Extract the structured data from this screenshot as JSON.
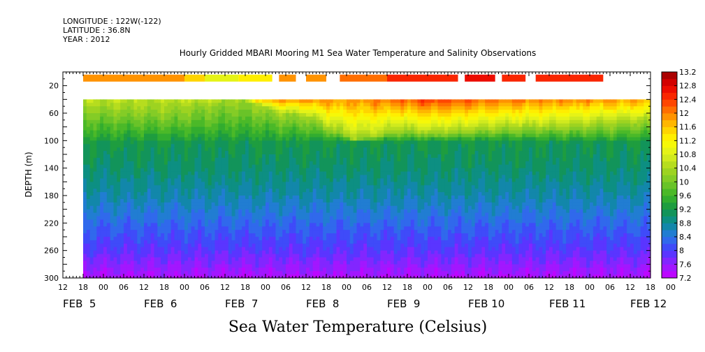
{
  "header": {
    "longitude": "LONGITUDE : 122W(-122)",
    "latitude": "LATITUDE : 36.8N",
    "year": "YEAR : 2012"
  },
  "chart_data": {
    "type": "heatmap",
    "title": "Hourly Gridded MBARI Mooring M1 Sea Water Temperature and Salinity Observations",
    "xlabel": "Sea Water Temperature (Celsius)",
    "ylabel": "DEPTH (m)",
    "x_unit": "hours since 2012-02-05 12:00",
    "xlim": [
      0,
      174
    ],
    "ylim": [
      300,
      0
    ],
    "y_ticks": [
      20,
      60,
      100,
      140,
      180,
      220,
      260,
      300
    ],
    "x_hour_ticks": [
      "12",
      "18",
      "00",
      "06",
      "12",
      "18",
      "00",
      "06",
      "12",
      "18",
      "00",
      "06",
      "12",
      "18",
      "00",
      "06",
      "12",
      "18",
      "00",
      "06",
      "12",
      "18",
      "00",
      "06",
      "12",
      "18",
      "00",
      "06",
      "12",
      "18",
      "00"
    ],
    "x_day_labels": [
      {
        "label": "FEB  5",
        "hour": 0
      },
      {
        "label": "FEB  6",
        "hour": 24
      },
      {
        "label": "FEB  7",
        "hour": 48
      },
      {
        "label": "FEB  8",
        "hour": 72
      },
      {
        "label": "FEB  9",
        "hour": 96
      },
      {
        "label": "FEB 10",
        "hour": 120
      },
      {
        "label": "FEB 11",
        "hour": 144
      },
      {
        "label": "FEB 12",
        "hour": 168
      }
    ],
    "colorbar": {
      "min": 7.2,
      "max": 13.2,
      "step": 0.2,
      "labels": [
        "13.2",
        "12.8",
        "12.4",
        "12",
        "11.6",
        "11.2",
        "10.8",
        "10.4",
        "10",
        "9.6",
        "9.2",
        "8.8",
        "8.4",
        "8",
        "7.6",
        "7.2"
      ]
    },
    "data_start_hour": 6,
    "data_top_depth": 40,
    "surface_depth": 10,
    "surface_segments": [
      {
        "start": 6,
        "end": 36,
        "value": 11.8
      },
      {
        "start": 36,
        "end": 42,
        "value": 11.4
      },
      {
        "start": 42,
        "end": 52,
        "value": 11.0
      },
      {
        "start": 52,
        "end": 62,
        "value": 11.3
      },
      {
        "start": 64,
        "end": 69,
        "value": 12.0
      },
      {
        "start": 72,
        "end": 75,
        "value": 12.0
      },
      {
        "start": 75,
        "end": 78,
        "value": 11.8
      },
      {
        "start": 82,
        "end": 96,
        "value": 12.2
      },
      {
        "start": 96,
        "end": 117,
        "value": 12.5
      },
      {
        "start": 119,
        "end": 128,
        "value": 12.7
      },
      {
        "start": 130,
        "end": 137,
        "value": 12.4
      },
      {
        "start": 140,
        "end": 160,
        "value": 12.5
      }
    ],
    "surface_temp_profile": [
      {
        "hour": 6,
        "value": 10.6
      },
      {
        "hour": 30,
        "value": 10.5
      },
      {
        "hour": 48,
        "value": 10.8
      },
      {
        "hour": 58,
        "value": 11.8
      },
      {
        "hour": 66,
        "value": 12.0
      },
      {
        "hour": 84,
        "value": 11.9
      },
      {
        "hour": 96,
        "value": 12.1
      },
      {
        "hour": 108,
        "value": 12.4
      },
      {
        "hour": 125,
        "value": 12.2
      },
      {
        "hour": 145,
        "value": 12.0
      },
      {
        "hour": 174,
        "value": 11.8
      }
    ],
    "isotherm_depth_profile": [
      {
        "hour": 6,
        "depth": 50
      },
      {
        "hour": 30,
        "depth": 55
      },
      {
        "hour": 52,
        "depth": 40
      },
      {
        "hour": 58,
        "depth": 48
      },
      {
        "hour": 64,
        "depth": 60
      },
      {
        "hour": 72,
        "depth": 65
      },
      {
        "hour": 78,
        "depth": 80
      },
      {
        "hour": 86,
        "depth": 98
      },
      {
        "hour": 92,
        "depth": 95
      },
      {
        "hour": 100,
        "depth": 85
      },
      {
        "hour": 110,
        "depth": 90
      },
      {
        "hour": 130,
        "depth": 82
      },
      {
        "hour": 150,
        "depth": 80
      },
      {
        "hour": 174,
        "depth": 72
      }
    ],
    "deep_profile": [
      {
        "depth": 100,
        "value": 9.2
      },
      {
        "depth": 140,
        "value": 9.0
      },
      {
        "depth": 180,
        "value": 8.7
      },
      {
        "depth": 220,
        "value": 8.3
      },
      {
        "depth": 260,
        "value": 7.9
      },
      {
        "depth": 300,
        "value": 7.4
      }
    ]
  }
}
